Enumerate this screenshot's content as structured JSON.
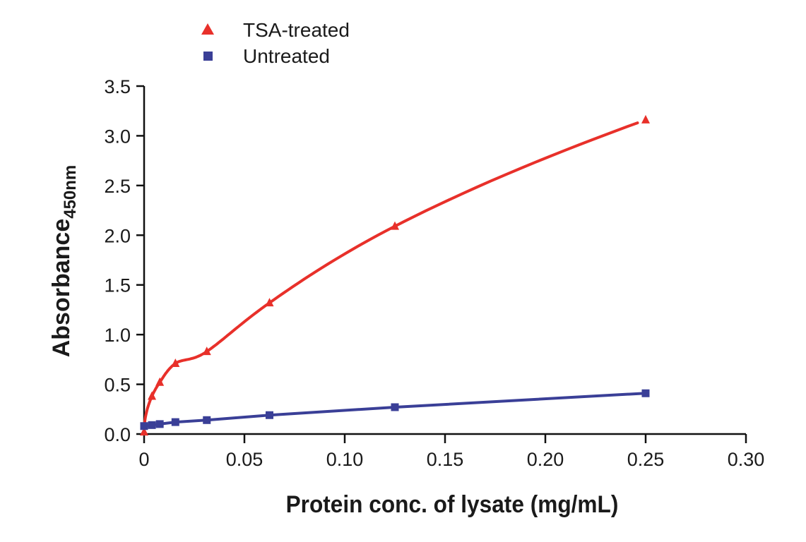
{
  "chart_data": {
    "type": "line",
    "title": "",
    "xlabel": "Protein conc. of lysate (mg/mL)",
    "ylabel_main": "Absorbance",
    "ylabel_sub": "450nm",
    "xlim": [
      0,
      0.3
    ],
    "ylim": [
      0,
      3.5
    ],
    "x_ticks": [
      0,
      0.05,
      0.1,
      0.15,
      0.2,
      0.25,
      0.3
    ],
    "x_tick_labels": [
      "0",
      "0.05",
      "0.10",
      "0.15",
      "0.20",
      "0.25",
      "0.30"
    ],
    "y_ticks": [
      0,
      0.5,
      1.0,
      1.5,
      2.0,
      2.5,
      3.0,
      3.5
    ],
    "y_tick_labels": [
      "0.0",
      "0.5",
      "1.0",
      "1.5",
      "2.0",
      "2.5",
      "3.0",
      "3.5"
    ],
    "grid": false,
    "legend_position": "top-left",
    "series": [
      {
        "name": "TSA-treated",
        "marker": "triangle",
        "color": "#e8302a",
        "x": [
          0,
          0.0039,
          0.0078,
          0.0156,
          0.03125,
          0.0625,
          0.125,
          0.25
        ],
        "values": [
          0.02,
          0.38,
          0.52,
          0.71,
          0.83,
          1.32,
          2.09,
          3.16
        ]
      },
      {
        "name": "Untreated",
        "marker": "square",
        "color": "#3a3f97",
        "x": [
          0,
          0.0039,
          0.0078,
          0.0156,
          0.03125,
          0.0625,
          0.125,
          0.25
        ],
        "values": [
          0.08,
          0.09,
          0.1,
          0.12,
          0.14,
          0.19,
          0.27,
          0.41
        ]
      }
    ]
  }
}
